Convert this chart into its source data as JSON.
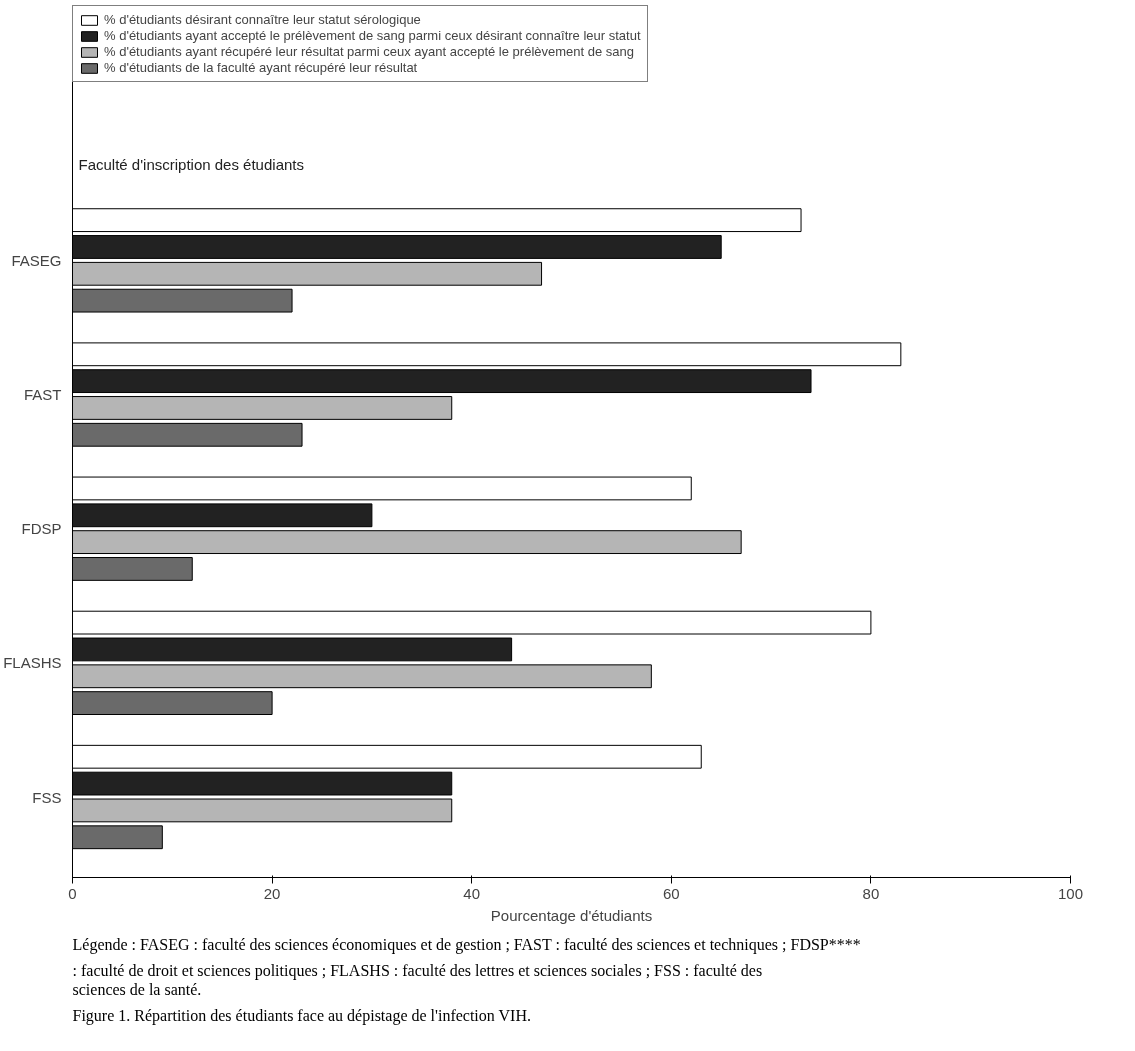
{
  "chart_data": {
    "type": "bar",
    "orientation": "horizontal",
    "ylabel": "Faculté d'inscription des étudiants",
    "xlabel": "Pourcentage d'étudiants",
    "categories": [
      "FASEG",
      "FAST",
      "FDSP",
      "FLASHS",
      "FSS"
    ],
    "series": [
      {
        "name": "% d'étudiants désirant connaître leur statut sérologique",
        "color": "#ffffff",
        "values": [
          73,
          83,
          62,
          80,
          63
        ]
      },
      {
        "name": "% d'étudiants ayant accepté le prélèvement de sang parmi ceux désirant connaître leur statut",
        "color": "#222222",
        "values": [
          65,
          74,
          30,
          44,
          38
        ]
      },
      {
        "name": "% d'étudiants ayant récupéré leur résultat parmi ceux ayant accepté le prélèvement de sang",
        "color": "#b5b5b5",
        "values": [
          47,
          38,
          67,
          58,
          38
        ]
      },
      {
        "name": "% d'étudiants de la faculté ayant récupéré leur résultat",
        "color": "#6a6a6a",
        "values": [
          22,
          23,
          12,
          20,
          9
        ]
      }
    ],
    "xlim": [
      0,
      100
    ],
    "xticks": [
      0,
      20,
      40,
      60,
      80,
      100
    ],
    "grid": false,
    "legend": "top",
    "annotations": [
      "Légende : FASEG : faculté des sciences économiques et de gestion ; FAST : faculté des sciences et techniques ; FDSP**** : faculté de droit et sciences politiques ; FLASHS : faculté des lettres et sciences sociales ; FSS : faculté des sciences de la santé.",
      "Figure 1. Répartition des étudiants face au dépistage de l'infection VIH."
    ]
  }
}
